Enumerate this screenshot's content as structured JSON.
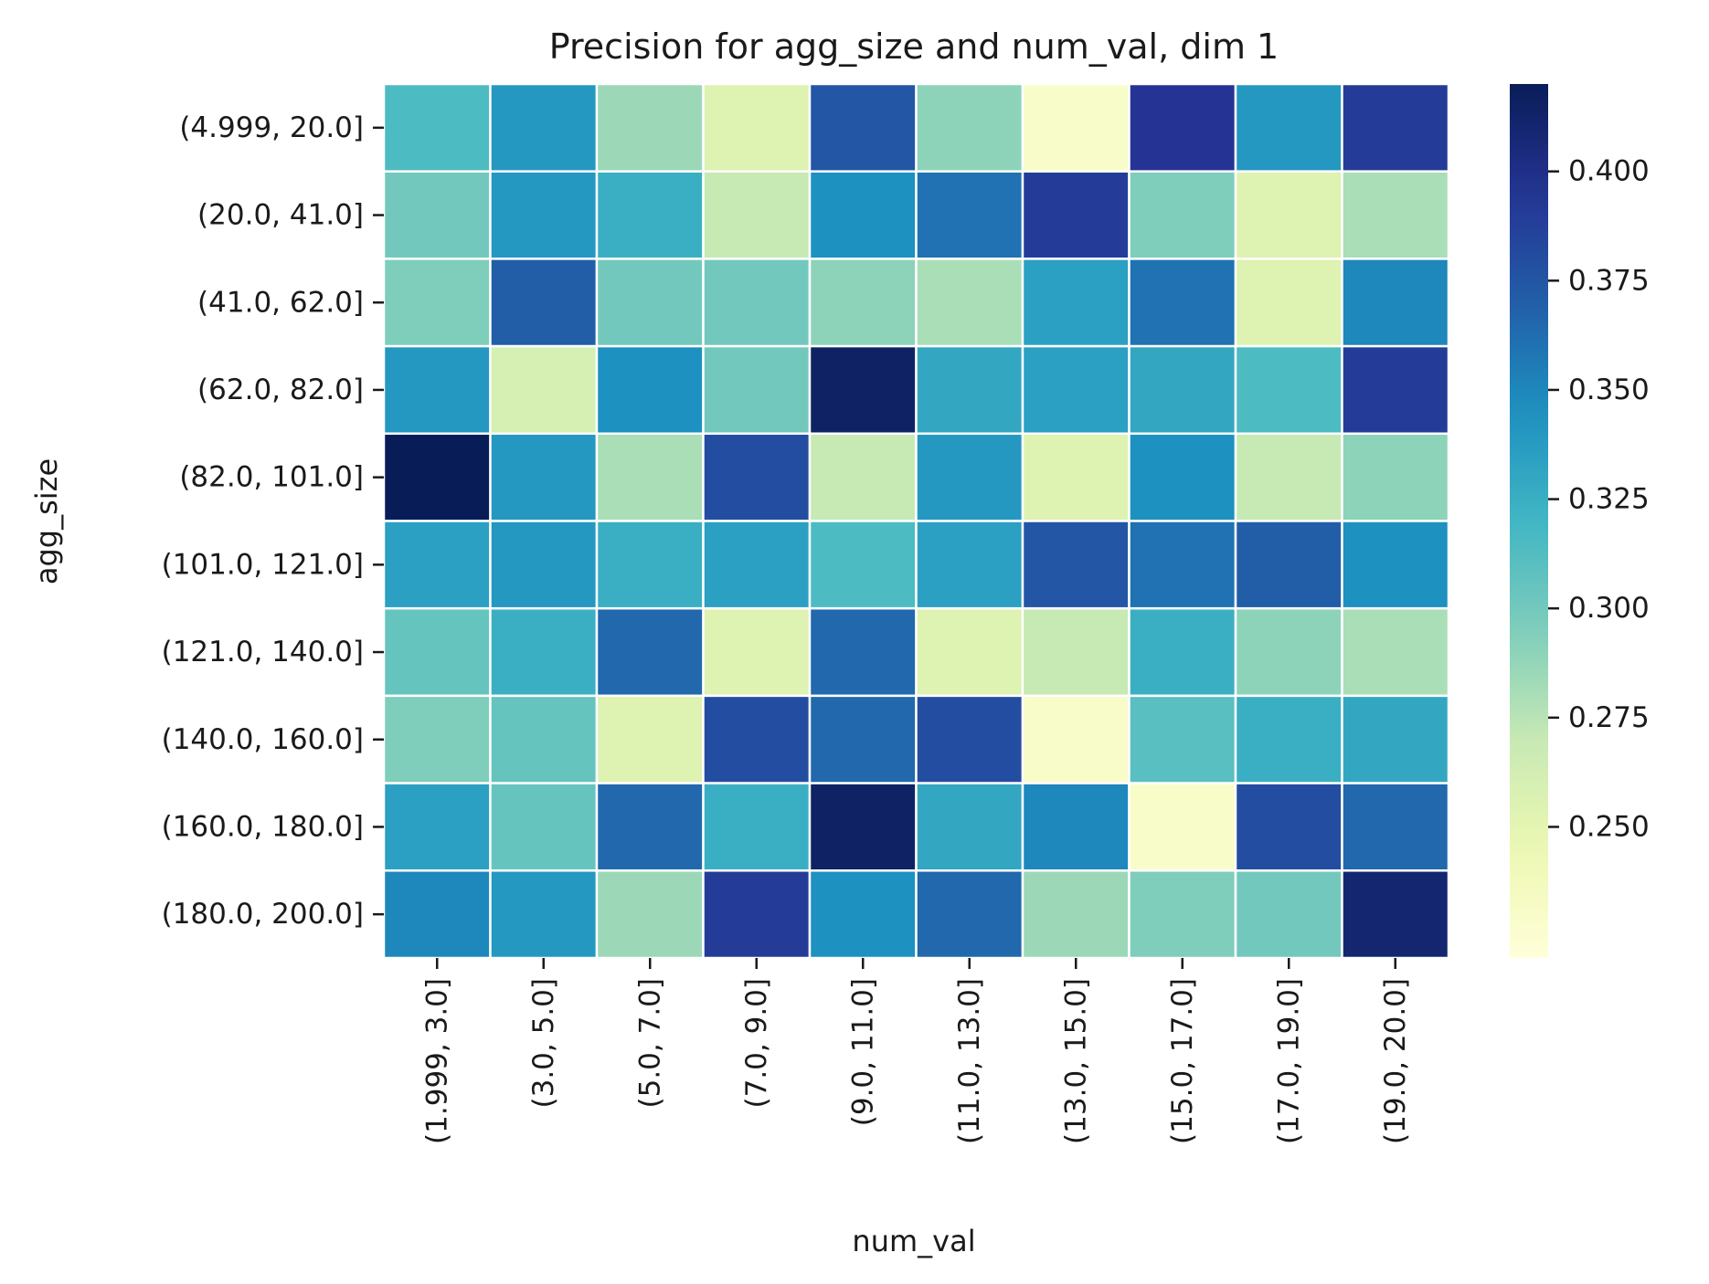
{
  "chart_data": {
    "type": "heatmap",
    "title": "Precision for agg_size and num_val, dim 1",
    "xlabel": "num_val",
    "ylabel": "agg_size",
    "x_categories": [
      "(1.999, 3.0]",
      "(3.0, 5.0]",
      "(5.0, 7.0]",
      "(7.0, 9.0]",
      "(9.0, 11.0]",
      "(11.0, 13.0]",
      "(13.0, 15.0]",
      "(15.0, 17.0]",
      "(17.0, 19.0]",
      "(19.0, 20.0]"
    ],
    "y_categories": [
      "(4.999, 20.0]",
      "(20.0, 41.0]",
      "(41.0, 62.0]",
      "(62.0, 82.0]",
      "(82.0, 101.0]",
      "(101.0, 121.0]",
      "(121.0, 140.0]",
      "(140.0, 160.0]",
      "(160.0, 180.0]",
      "(180.0, 200.0]"
    ],
    "values": [
      [
        0.315,
        0.34,
        0.285,
        0.255,
        0.375,
        0.29,
        0.23,
        0.395,
        0.34,
        0.39
      ],
      [
        0.3,
        0.34,
        0.325,
        0.27,
        0.345,
        0.36,
        0.39,
        0.295,
        0.255,
        0.28
      ],
      [
        0.295,
        0.37,
        0.3,
        0.3,
        0.29,
        0.28,
        0.335,
        0.36,
        0.255,
        0.35
      ],
      [
        0.34,
        0.26,
        0.345,
        0.3,
        0.415,
        0.33,
        0.335,
        0.33,
        0.315,
        0.39
      ],
      [
        0.42,
        0.34,
        0.28,
        0.38,
        0.27,
        0.34,
        0.255,
        0.345,
        0.27,
        0.29
      ],
      [
        0.335,
        0.34,
        0.325,
        0.335,
        0.315,
        0.335,
        0.375,
        0.36,
        0.37,
        0.345
      ],
      [
        0.305,
        0.325,
        0.365,
        0.255,
        0.365,
        0.255,
        0.27,
        0.325,
        0.29,
        0.28
      ],
      [
        0.295,
        0.305,
        0.255,
        0.38,
        0.365,
        0.38,
        0.23,
        0.31,
        0.325,
        0.33
      ],
      [
        0.335,
        0.305,
        0.365,
        0.325,
        0.415,
        0.33,
        0.35,
        0.23,
        0.38,
        0.365
      ],
      [
        0.35,
        0.34,
        0.285,
        0.39,
        0.345,
        0.365,
        0.285,
        0.295,
        0.3,
        0.41
      ]
    ],
    "vmin": 0.22,
    "vmax": 0.42,
    "colormap": "YlGnBu",
    "colorbar_ticks": [
      0.25,
      0.275,
      0.3,
      0.325,
      0.35,
      0.375,
      0.4
    ],
    "colorbar_tick_labels": [
      "0.250",
      "0.275",
      "0.300",
      "0.325",
      "0.350",
      "0.375",
      "0.400"
    ],
    "grid": false,
    "cell_border_color": "#ffffff"
  }
}
